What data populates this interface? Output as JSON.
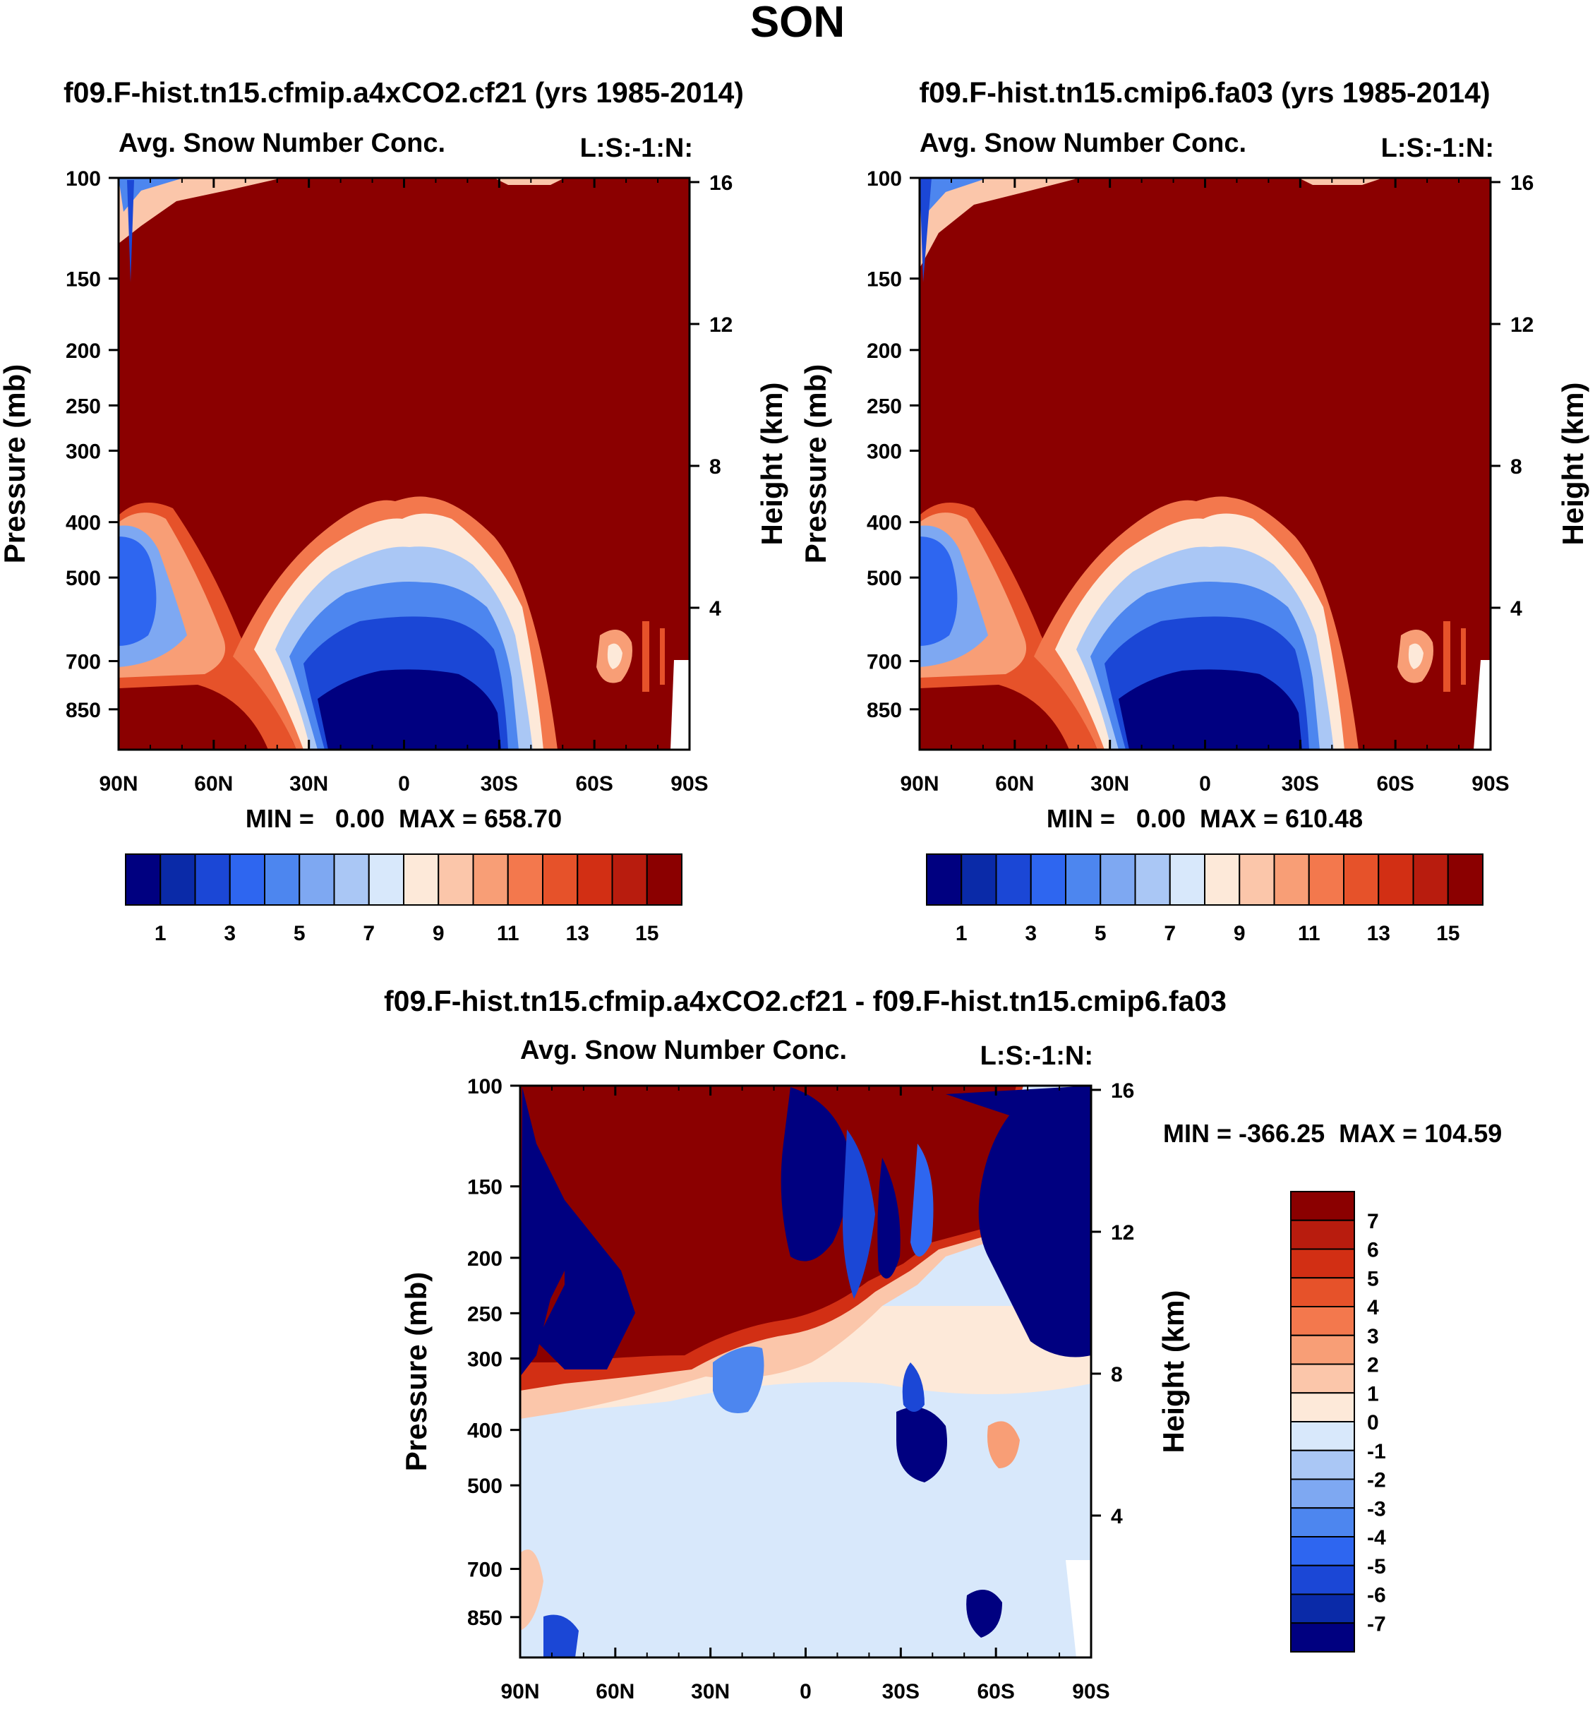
{
  "title": "SON",
  "chart_data": [
    {
      "type": "heatmap",
      "subtitle": "f09.F-hist.tn15.cfmip.a4xCO2.cf21 (yrs 1985-2014)",
      "left_string": "Avg. Snow Number Conc.",
      "right_string": "L:S:-1:N:",
      "ylabel": "Pressure (mb)",
      "y2label": "Height (km)",
      "x_ticks": [
        "90N",
        "60N",
        "30N",
        "0",
        "30S",
        "60S",
        "90S"
      ],
      "y_ticks": [
        "100",
        "150",
        "200",
        "250",
        "300",
        "400",
        "500",
        "700",
        "850"
      ],
      "y2_ticks": [
        "16",
        "12",
        "8",
        "4"
      ],
      "ylim": [
        100,
        1000
      ],
      "stats": "MIN =   0.00  MAX = 658.70",
      "colorbar_labels": [
        "1",
        "3",
        "5",
        "7",
        "9",
        "11",
        "13",
        "15"
      ],
      "colorbar_orientation": "horizontal"
    },
    {
      "type": "heatmap",
      "subtitle": "f09.F-hist.tn15.cmip6.fa03 (yrs 1985-2014)",
      "left_string": "Avg. Snow Number Conc.",
      "right_string": "L:S:-1:N:",
      "ylabel": "Pressure (mb)",
      "y2label": "Height (km)",
      "x_ticks": [
        "90N",
        "60N",
        "30N",
        "0",
        "30S",
        "60S",
        "90S"
      ],
      "y_ticks": [
        "100",
        "150",
        "200",
        "250",
        "300",
        "400",
        "500",
        "700",
        "850"
      ],
      "y2_ticks": [
        "16",
        "12",
        "8",
        "4"
      ],
      "ylim": [
        100,
        1000
      ],
      "stats": "MIN =   0.00  MAX = 610.48",
      "colorbar_labels": [
        "1",
        "3",
        "5",
        "7",
        "9",
        "11",
        "13",
        "15"
      ],
      "colorbar_orientation": "horizontal"
    },
    {
      "type": "heatmap",
      "subtitle": "f09.F-hist.tn15.cfmip.a4xCO2.cf21 - f09.F-hist.tn15.cmip6.fa03",
      "left_string": "Avg. Snow Number Conc.",
      "right_string": "L:S:-1:N:",
      "ylabel": "Pressure (mb)",
      "y2label": "Height (km)",
      "x_ticks": [
        "90N",
        "60N",
        "30N",
        "0",
        "30S",
        "60S",
        "90S"
      ],
      "y_ticks": [
        "100",
        "150",
        "200",
        "250",
        "300",
        "400",
        "500",
        "700",
        "850"
      ],
      "y2_ticks": [
        "16",
        "12",
        "8",
        "4"
      ],
      "ylim": [
        100,
        1000
      ],
      "stats": "MIN = -366.25  MAX = 104.59",
      "colorbar_labels": [
        "7",
        "6",
        "5",
        "4",
        "3",
        "2",
        "1",
        "0",
        "-1",
        "-2",
        "-3",
        "-4",
        "-5",
        "-6",
        "-7"
      ],
      "colorbar_orientation": "vertical"
    }
  ],
  "palette": [
    "#000080",
    "#0a2aa8",
    "#1b47d6",
    "#2e66f0",
    "#4d86ef",
    "#7ea8f2",
    "#aac7f5",
    "#d8e8fb",
    "#fde9d9",
    "#fbc6aa",
    "#f89e76",
    "#f3784d",
    "#e6522a",
    "#d22f14",
    "#b81c0e",
    "#8b0000"
  ]
}
